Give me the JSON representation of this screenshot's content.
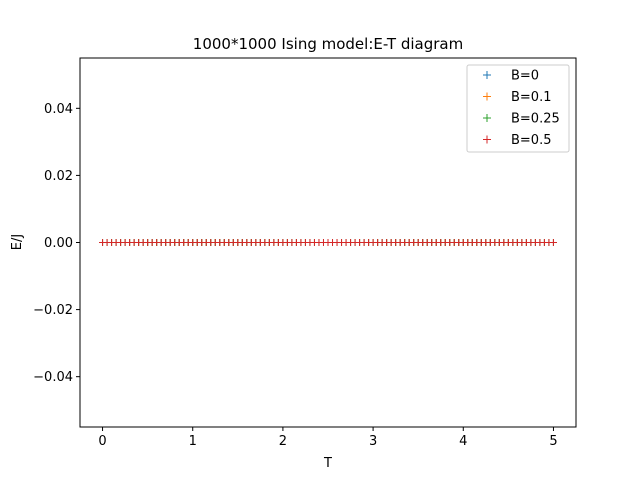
{
  "chart_data": {
    "type": "scatter",
    "title": "1000*1000 Ising model:E-T diagram",
    "xlabel": "T",
    "ylabel": "E/J",
    "xlim": [
      -0.25,
      5.25
    ],
    "ylim": [
      -0.055,
      0.055
    ],
    "xticks": [
      0,
      1,
      2,
      3,
      4,
      5
    ],
    "xtick_labels": [
      "0",
      "1",
      "2",
      "3",
      "4",
      "5"
    ],
    "yticks": [
      -0.04,
      -0.02,
      0.0,
      0.02,
      0.04
    ],
    "ytick_labels": [
      "−0.04",
      "−0.02",
      "0.00",
      "0.02",
      "0.04"
    ],
    "grid": false,
    "legend_position": "upper-right",
    "marker": "+",
    "x": [
      0.0,
      0.05,
      0.1,
      0.15,
      0.2,
      0.25,
      0.3,
      0.35,
      0.4,
      0.45,
      0.5,
      0.55,
      0.6,
      0.65,
      0.7,
      0.75,
      0.8,
      0.85,
      0.9,
      0.95,
      1.0,
      1.05,
      1.1,
      1.15,
      1.2,
      1.25,
      1.3,
      1.35,
      1.4,
      1.45,
      1.5,
      1.55,
      1.6,
      1.65,
      1.7,
      1.75,
      1.8,
      1.85,
      1.9,
      1.95,
      2.0,
      2.05,
      2.1,
      2.15,
      2.2,
      2.25,
      2.3,
      2.35,
      2.4,
      2.45,
      2.5,
      2.55,
      2.6,
      2.65,
      2.7,
      2.75,
      2.8,
      2.85,
      2.9,
      2.95,
      3.0,
      3.05,
      3.1,
      3.15,
      3.2,
      3.25,
      3.3,
      3.35,
      3.4,
      3.45,
      3.5,
      3.55,
      3.6,
      3.65,
      3.7,
      3.75,
      3.8,
      3.85,
      3.9,
      3.95,
      4.0,
      4.05,
      4.1,
      4.15,
      4.2,
      4.25,
      4.3,
      4.35,
      4.4,
      4.45,
      4.5,
      4.55,
      4.6,
      4.65,
      4.7,
      4.75,
      4.8,
      4.85,
      4.9,
      4.95,
      5.0
    ],
    "series": [
      {
        "name": "B=0",
        "color": "#1f77b4",
        "value": 0.0
      },
      {
        "name": "B=0.1",
        "color": "#ff7f0e",
        "value": 0.0
      },
      {
        "name": "B=0.25",
        "color": "#2ca02c",
        "value": 0.0
      },
      {
        "name": "B=0.5",
        "color": "#d62728",
        "value": 0.0
      }
    ]
  }
}
